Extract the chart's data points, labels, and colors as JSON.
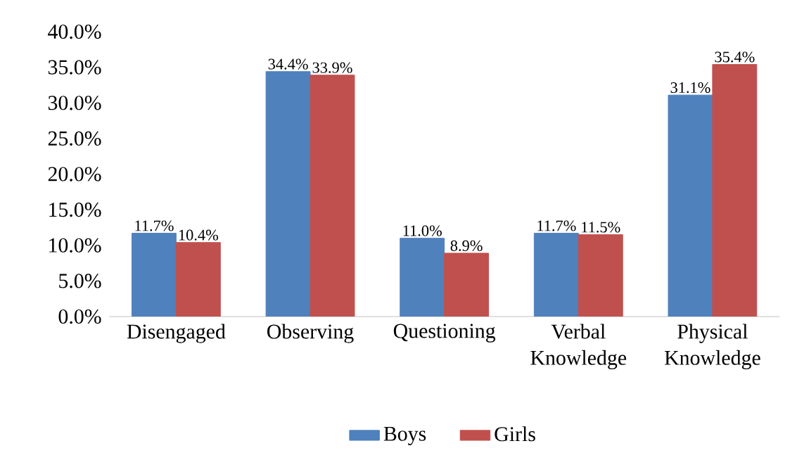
{
  "chart_data": {
    "type": "bar",
    "categories": [
      "Disengaged",
      "Observing",
      "Questioning",
      "Verbal Knowledge",
      "Physical Knowledge"
    ],
    "series": [
      {
        "name": "Boys",
        "color": "#4f81bd",
        "values": [
          11.7,
          34.4,
          11.0,
          11.7,
          31.1
        ],
        "value_labels": [
          "11.7%",
          "34.4%",
          "11.0%",
          "11.7%",
          "31.1%"
        ]
      },
      {
        "name": "Girls",
        "color": "#c0504d",
        "values": [
          10.4,
          33.9,
          8.9,
          11.5,
          35.4
        ],
        "value_labels": [
          "10.4%",
          "33.9%",
          "8.9%",
          "11.5%",
          "35.4%"
        ]
      }
    ],
    "ylim": [
      0,
      40
    ],
    "yticks": [
      {
        "value": 0,
        "label": "0.0%"
      },
      {
        "value": 5,
        "label": "5.0%"
      },
      {
        "value": 10,
        "label": "10.0%"
      },
      {
        "value": 15,
        "label": "15.0%"
      },
      {
        "value": 20,
        "label": "20.0%"
      },
      {
        "value": 25,
        "label": "25.0%"
      },
      {
        "value": 30,
        "label": "30.0%"
      },
      {
        "value": 35,
        "label": "35.0%"
      },
      {
        "value": 40,
        "label": "40.0%"
      }
    ],
    "grid": false,
    "legend": "bottom"
  }
}
